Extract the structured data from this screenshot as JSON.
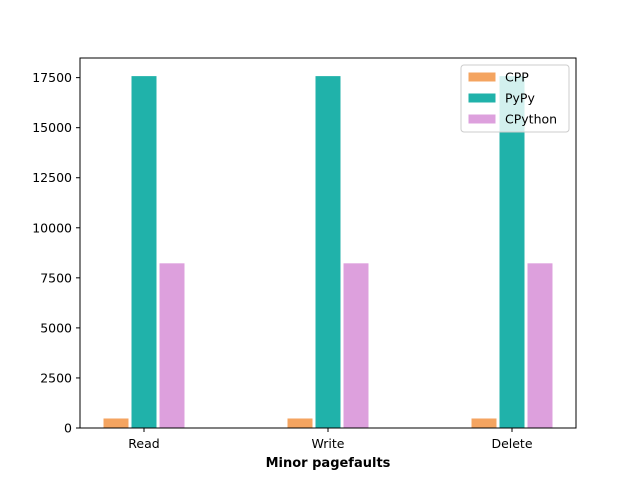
{
  "chart_data": {
    "type": "bar",
    "categories": [
      "Read",
      "Write",
      "Delete"
    ],
    "series": [
      {
        "name": "CPP",
        "color": "#f4a460",
        "values": [
          500,
          500,
          500
        ]
      },
      {
        "name": "PyPy",
        "color": "#20b2aa",
        "values": [
          17600,
          17600,
          17600
        ]
      },
      {
        "name": "CPython",
        "color": "#dda0dd",
        "values": [
          8250,
          8250,
          8250
        ]
      }
    ],
    "title": "",
    "xlabel": "Minor pagefaults",
    "ylabel": "",
    "ylim": [
      0,
      18480
    ],
    "yticks": [
      0,
      2500,
      5000,
      7500,
      10000,
      12500,
      15000,
      17500
    ],
    "legend": "top-right",
    "grid": false
  }
}
